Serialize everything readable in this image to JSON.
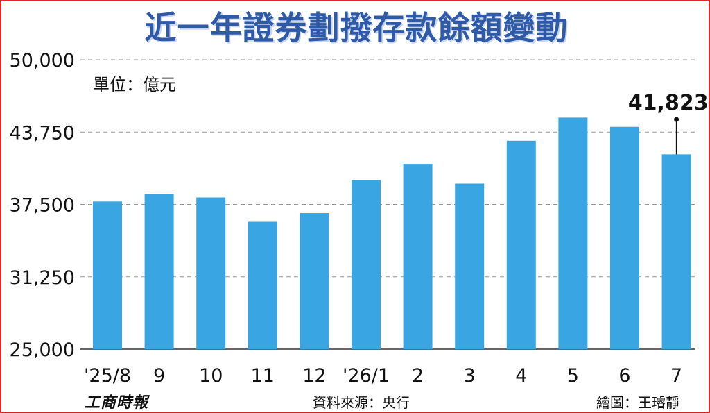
{
  "title": "近一年證券劃撥存款餘額變動",
  "unit_label": "單位：億元",
  "footer": {
    "brand": "工商時報",
    "source": "資料來源：央行",
    "credit": "繪圖：王璿靜"
  },
  "colors": {
    "bar": "#39a5e3",
    "title": "#2e5aa8",
    "border": "#e2232a",
    "grid": "#999999"
  },
  "chart_data": {
    "type": "bar",
    "title": "近一年證券劃撥存款餘額變動",
    "ylabel": "單位：億元",
    "categories": [
      "'25/8",
      "9",
      "10",
      "11",
      "12",
      "'26/1",
      "2",
      "3",
      "4",
      "5",
      "6",
      "7"
    ],
    "values": [
      37750,
      38400,
      38100,
      36000,
      36750,
      39600,
      41000,
      39300,
      43000,
      45000,
      44200,
      41823
    ],
    "ylim": [
      25000,
      50000
    ],
    "yticks": [
      25000,
      31250,
      37500,
      43750,
      50000
    ],
    "ytick_labels": [
      "25,000",
      "31,250",
      "37,500",
      "43,750",
      "50,000"
    ],
    "grid": true,
    "annotation": {
      "category": "7",
      "label": "41,823"
    }
  }
}
